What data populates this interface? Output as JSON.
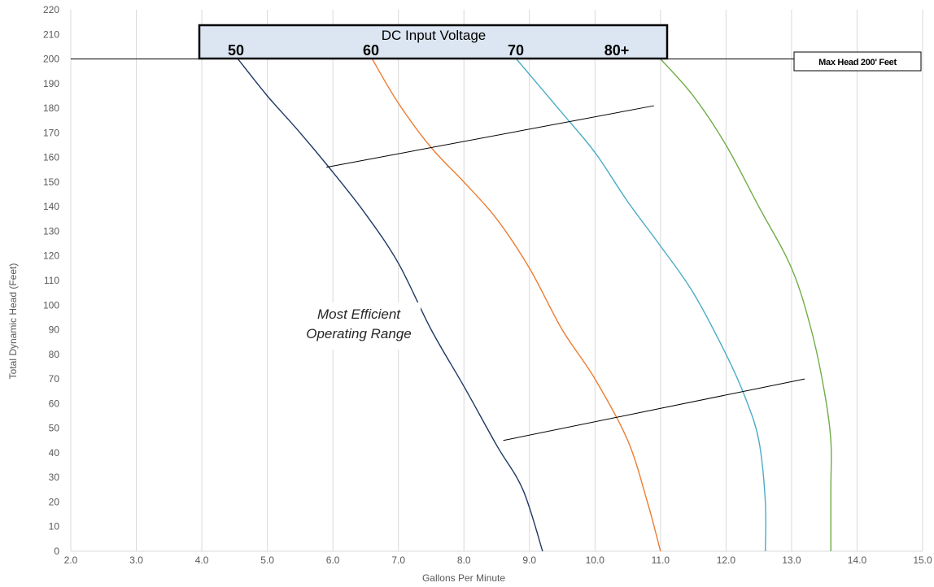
{
  "chart_data": {
    "type": "line",
    "xlabel": "Gallons Per Minute",
    "ylabel": "Total Dynamic Head (Feet)",
    "xlim": [
      2.0,
      15.0
    ],
    "ylim": [
      0,
      220
    ],
    "xticks": [
      2.0,
      3.0,
      4.0,
      5.0,
      6.0,
      7.0,
      8.0,
      9.0,
      10.0,
      11.0,
      12.0,
      13.0,
      14.0,
      15.0
    ],
    "xtick_labels": [
      "2.0",
      "3.0",
      "4.0",
      "5.0",
      "6.0",
      "7.0",
      "8.0",
      "9.0",
      "10.0",
      "11.0",
      "12.0",
      "13.0",
      "14.0",
      "15.0"
    ],
    "yticks": [
      0,
      10,
      20,
      30,
      40,
      50,
      60,
      70,
      80,
      90,
      100,
      110,
      120,
      130,
      140,
      150,
      160,
      170,
      180,
      190,
      200,
      210,
      220
    ],
    "ytick_labels": [
      "0",
      "10",
      "20",
      "30",
      "40",
      "50",
      "60",
      "70",
      "80",
      "90",
      "100",
      "110",
      "120",
      "130",
      "140",
      "150",
      "160",
      "170",
      "180",
      "190",
      "200",
      "210",
      "220"
    ],
    "grid": "vertical",
    "legend": "none",
    "series": [
      {
        "name": "50",
        "color": "#1f3864",
        "points": [
          [
            4.55,
            200
          ],
          [
            5.0,
            185
          ],
          [
            5.5,
            170
          ],
          [
            6.0,
            154
          ],
          [
            6.5,
            137
          ],
          [
            7.0,
            117
          ],
          [
            7.5,
            90
          ],
          [
            8.0,
            67
          ],
          [
            8.5,
            43
          ],
          [
            8.9,
            25
          ],
          [
            9.2,
            0
          ]
        ]
      },
      {
        "name": "60",
        "color": "#ed7d31",
        "points": [
          [
            6.6,
            200
          ],
          [
            7.0,
            182
          ],
          [
            7.5,
            164
          ],
          [
            8.0,
            150
          ],
          [
            8.5,
            135
          ],
          [
            9.0,
            115
          ],
          [
            9.5,
            90
          ],
          [
            10.0,
            70
          ],
          [
            10.5,
            45
          ],
          [
            10.8,
            20
          ],
          [
            11.0,
            0
          ]
        ]
      },
      {
        "name": "70",
        "color": "#4bacc6",
        "points": [
          [
            8.8,
            200
          ],
          [
            9.5,
            178
          ],
          [
            10.0,
            162
          ],
          [
            10.5,
            142
          ],
          [
            11.0,
            124
          ],
          [
            11.5,
            105
          ],
          [
            12.0,
            80
          ],
          [
            12.3,
            62
          ],
          [
            12.5,
            45
          ],
          [
            12.6,
            20
          ],
          [
            12.6,
            0
          ]
        ]
      },
      {
        "name": "80+",
        "color": "#70ad47",
        "points": [
          [
            11.0,
            200
          ],
          [
            11.5,
            185
          ],
          [
            12.0,
            165
          ],
          [
            12.5,
            140
          ],
          [
            13.0,
            115
          ],
          [
            13.3,
            90
          ],
          [
            13.5,
            65
          ],
          [
            13.6,
            45
          ],
          [
            13.6,
            25
          ],
          [
            13.6,
            0
          ]
        ]
      }
    ],
    "annotations": {
      "dc_input_title": "DC Input Voltage",
      "voltage_labels": [
        "50",
        "60",
        "70",
        "80+"
      ],
      "max_head_label": "Max Head 200' Feet",
      "max_head_value": 200,
      "efficient_range": [
        "Most Efficient",
        "Operating Range"
      ],
      "efficiency_upper_line": [
        [
          5.9,
          156
        ],
        [
          10.9,
          181
        ]
      ],
      "efficiency_lower_line": [
        [
          8.6,
          45
        ],
        [
          13.2,
          70
        ]
      ]
    }
  }
}
